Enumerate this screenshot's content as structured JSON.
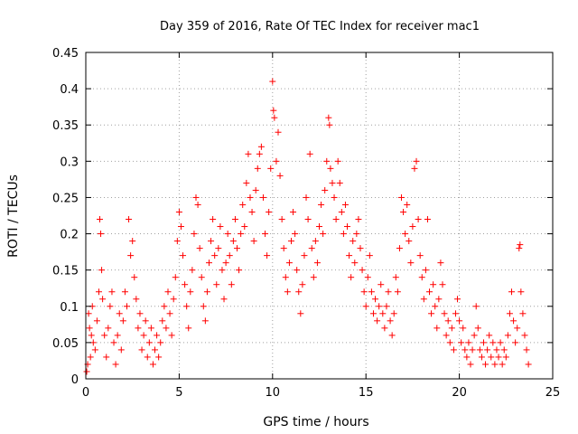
{
  "chart_data": {
    "type": "scatter",
    "title": "Day 359 of 2016, Rate Of TEC Index for receiver mac1",
    "xlabel": "GPS time / hours",
    "ylabel": "ROTI / TECUs",
    "xlim": [
      0,
      25
    ],
    "ylim": [
      0,
      0.45
    ],
    "x_ticks": [
      0,
      5,
      10,
      15,
      20,
      25
    ],
    "x_tick_labels": [
      "0",
      "5",
      "10",
      "15",
      "20",
      "25"
    ],
    "y_ticks": [
      0,
      0.05,
      0.1,
      0.15,
      0.2,
      0.25,
      0.3,
      0.35,
      0.4,
      0.45
    ],
    "y_tick_labels": [
      "0",
      "0.05",
      "0.1",
      "0.15",
      "0.2",
      "0.25",
      "0.3",
      "0.35",
      "0.4",
      "0.45"
    ],
    "grid": true,
    "marker": "plus",
    "color": "#ff0000",
    "series": [
      {
        "points": [
          [
            0.05,
            0.01
          ],
          [
            0.1,
            0.02
          ],
          [
            0.15,
            0.09
          ],
          [
            0.2,
            0.07
          ],
          [
            0.25,
            0.03
          ],
          [
            0.3,
            0.06
          ],
          [
            0.35,
            0.1
          ],
          [
            0.4,
            0.05
          ],
          [
            0.5,
            0.04
          ],
          [
            0.6,
            0.08
          ],
          [
            0.7,
            0.12
          ],
          [
            0.75,
            0.22
          ],
          [
            0.8,
            0.2
          ],
          [
            0.85,
            0.15
          ],
          [
            0.9,
            0.11
          ],
          [
            1.0,
            0.06
          ],
          [
            1.1,
            0.03
          ],
          [
            1.2,
            0.07
          ],
          [
            1.3,
            0.1
          ],
          [
            1.4,
            0.12
          ],
          [
            1.5,
            0.05
          ],
          [
            1.6,
            0.02
          ],
          [
            1.7,
            0.06
          ],
          [
            1.8,
            0.09
          ],
          [
            1.9,
            0.04
          ],
          [
            2.0,
            0.08
          ],
          [
            2.1,
            0.12
          ],
          [
            2.2,
            0.1
          ],
          [
            2.3,
            0.22
          ],
          [
            2.4,
            0.17
          ],
          [
            2.5,
            0.19
          ],
          [
            2.6,
            0.14
          ],
          [
            2.7,
            0.11
          ],
          [
            2.8,
            0.07
          ],
          [
            2.9,
            0.09
          ],
          [
            3.0,
            0.04
          ],
          [
            3.1,
            0.06
          ],
          [
            3.2,
            0.08
          ],
          [
            3.3,
            0.03
          ],
          [
            3.4,
            0.05
          ],
          [
            3.5,
            0.07
          ],
          [
            3.6,
            0.02
          ],
          [
            3.7,
            0.04
          ],
          [
            3.8,
            0.06
          ],
          [
            3.9,
            0.03
          ],
          [
            4.0,
            0.05
          ],
          [
            4.1,
            0.08
          ],
          [
            4.2,
            0.1
          ],
          [
            4.3,
            0.07
          ],
          [
            4.4,
            0.12
          ],
          [
            4.5,
            0.09
          ],
          [
            4.6,
            0.06
          ],
          [
            4.7,
            0.11
          ],
          [
            4.8,
            0.14
          ],
          [
            4.9,
            0.19
          ],
          [
            5.0,
            0.23
          ],
          [
            5.1,
            0.21
          ],
          [
            5.2,
            0.17
          ],
          [
            5.3,
            0.13
          ],
          [
            5.4,
            0.1
          ],
          [
            5.5,
            0.07
          ],
          [
            5.6,
            0.12
          ],
          [
            5.7,
            0.15
          ],
          [
            5.8,
            0.2
          ],
          [
            5.9,
            0.25
          ],
          [
            6.0,
            0.24
          ],
          [
            6.1,
            0.18
          ],
          [
            6.2,
            0.14
          ],
          [
            6.3,
            0.1
          ],
          [
            6.4,
            0.08
          ],
          [
            6.5,
            0.12
          ],
          [
            6.6,
            0.16
          ],
          [
            6.7,
            0.19
          ],
          [
            6.8,
            0.22
          ],
          [
            6.9,
            0.17
          ],
          [
            7.0,
            0.13
          ],
          [
            7.1,
            0.18
          ],
          [
            7.2,
            0.21
          ],
          [
            7.3,
            0.15
          ],
          [
            7.4,
            0.11
          ],
          [
            7.5,
            0.16
          ],
          [
            7.6,
            0.2
          ],
          [
            7.7,
            0.17
          ],
          [
            7.8,
            0.13
          ],
          [
            7.9,
            0.19
          ],
          [
            8.0,
            0.22
          ],
          [
            8.1,
            0.18
          ],
          [
            8.2,
            0.15
          ],
          [
            8.3,
            0.2
          ],
          [
            8.4,
            0.24
          ],
          [
            8.5,
            0.21
          ],
          [
            8.6,
            0.27
          ],
          [
            8.7,
            0.31
          ],
          [
            8.8,
            0.25
          ],
          [
            8.9,
            0.23
          ],
          [
            9.0,
            0.19
          ],
          [
            9.1,
            0.26
          ],
          [
            9.2,
            0.29
          ],
          [
            9.3,
            0.31
          ],
          [
            9.4,
            0.32
          ],
          [
            9.5,
            0.25
          ],
          [
            9.6,
            0.2
          ],
          [
            9.7,
            0.17
          ],
          [
            9.8,
            0.23
          ],
          [
            9.9,
            0.29
          ],
          [
            10.0,
            0.41
          ],
          [
            10.05,
            0.37
          ],
          [
            10.1,
            0.36
          ],
          [
            10.2,
            0.3
          ],
          [
            10.3,
            0.34
          ],
          [
            10.4,
            0.28
          ],
          [
            10.5,
            0.22
          ],
          [
            10.6,
            0.18
          ],
          [
            10.7,
            0.14
          ],
          [
            10.8,
            0.12
          ],
          [
            10.9,
            0.16
          ],
          [
            11.0,
            0.19
          ],
          [
            11.1,
            0.23
          ],
          [
            11.2,
            0.2
          ],
          [
            11.3,
            0.15
          ],
          [
            11.4,
            0.12
          ],
          [
            11.5,
            0.09
          ],
          [
            11.6,
            0.13
          ],
          [
            11.7,
            0.17
          ],
          [
            11.8,
            0.25
          ],
          [
            11.9,
            0.22
          ],
          [
            12.0,
            0.31
          ],
          [
            12.1,
            0.18
          ],
          [
            12.2,
            0.14
          ],
          [
            12.3,
            0.19
          ],
          [
            12.4,
            0.16
          ],
          [
            12.5,
            0.21
          ],
          [
            12.6,
            0.24
          ],
          [
            12.7,
            0.2
          ],
          [
            12.8,
            0.26
          ],
          [
            12.9,
            0.3
          ],
          [
            13.0,
            0.36
          ],
          [
            13.05,
            0.35
          ],
          [
            13.1,
            0.29
          ],
          [
            13.2,
            0.27
          ],
          [
            13.3,
            0.25
          ],
          [
            13.4,
            0.22
          ],
          [
            13.5,
            0.3
          ],
          [
            13.6,
            0.27
          ],
          [
            13.7,
            0.23
          ],
          [
            13.8,
            0.2
          ],
          [
            13.9,
            0.24
          ],
          [
            14.0,
            0.21
          ],
          [
            14.1,
            0.17
          ],
          [
            14.2,
            0.14
          ],
          [
            14.3,
            0.19
          ],
          [
            14.4,
            0.16
          ],
          [
            14.5,
            0.2
          ],
          [
            14.6,
            0.22
          ],
          [
            14.7,
            0.18
          ],
          [
            14.8,
            0.15
          ],
          [
            14.9,
            0.12
          ],
          [
            15.0,
            0.1
          ],
          [
            15.1,
            0.14
          ],
          [
            15.2,
            0.17
          ],
          [
            15.3,
            0.12
          ],
          [
            15.4,
            0.09
          ],
          [
            15.5,
            0.11
          ],
          [
            15.6,
            0.08
          ],
          [
            15.7,
            0.1
          ],
          [
            15.8,
            0.13
          ],
          [
            15.9,
            0.09
          ],
          [
            16.0,
            0.07
          ],
          [
            16.1,
            0.1
          ],
          [
            16.2,
            0.12
          ],
          [
            16.3,
            0.08
          ],
          [
            16.4,
            0.06
          ],
          [
            16.5,
            0.09
          ],
          [
            16.6,
            0.14
          ],
          [
            16.7,
            0.12
          ],
          [
            16.8,
            0.18
          ],
          [
            16.9,
            0.25
          ],
          [
            17.0,
            0.23
          ],
          [
            17.1,
            0.2
          ],
          [
            17.2,
            0.24
          ],
          [
            17.3,
            0.19
          ],
          [
            17.4,
            0.16
          ],
          [
            17.5,
            0.21
          ],
          [
            17.6,
            0.29
          ],
          [
            17.7,
            0.3
          ],
          [
            17.8,
            0.22
          ],
          [
            17.9,
            0.17
          ],
          [
            18.0,
            0.14
          ],
          [
            18.1,
            0.11
          ],
          [
            18.2,
            0.15
          ],
          [
            18.3,
            0.22
          ],
          [
            18.4,
            0.12
          ],
          [
            18.5,
            0.09
          ],
          [
            18.6,
            0.13
          ],
          [
            18.7,
            0.1
          ],
          [
            18.8,
            0.07
          ],
          [
            18.9,
            0.11
          ],
          [
            19.0,
            0.16
          ],
          [
            19.1,
            0.13
          ],
          [
            19.2,
            0.09
          ],
          [
            19.3,
            0.06
          ],
          [
            19.4,
            0.08
          ],
          [
            19.5,
            0.05
          ],
          [
            19.6,
            0.07
          ],
          [
            19.7,
            0.04
          ],
          [
            19.8,
            0.09
          ],
          [
            19.9,
            0.11
          ],
          [
            20.0,
            0.08
          ],
          [
            20.1,
            0.05
          ],
          [
            20.2,
            0.07
          ],
          [
            20.3,
            0.04
          ],
          [
            20.4,
            0.03
          ],
          [
            20.5,
            0.05
          ],
          [
            20.6,
            0.02
          ],
          [
            20.7,
            0.04
          ],
          [
            20.8,
            0.06
          ],
          [
            20.9,
            0.1
          ],
          [
            21.0,
            0.07
          ],
          [
            21.1,
            0.04
          ],
          [
            21.2,
            0.03
          ],
          [
            21.3,
            0.05
          ],
          [
            21.4,
            0.02
          ],
          [
            21.5,
            0.04
          ],
          [
            21.6,
            0.06
          ],
          [
            21.7,
            0.03
          ],
          [
            21.8,
            0.05
          ],
          [
            21.9,
            0.02
          ],
          [
            22.0,
            0.04
          ],
          [
            22.1,
            0.03
          ],
          [
            22.2,
            0.05
          ],
          [
            22.3,
            0.02
          ],
          [
            22.4,
            0.04
          ],
          [
            22.5,
            0.03
          ],
          [
            22.6,
            0.06
          ],
          [
            22.7,
            0.09
          ],
          [
            22.8,
            0.12
          ],
          [
            22.9,
            0.08
          ],
          [
            23.0,
            0.05
          ],
          [
            23.1,
            0.07
          ],
          [
            23.2,
            0.18
          ],
          [
            23.25,
            0.185
          ],
          [
            23.3,
            0.12
          ],
          [
            23.4,
            0.09
          ],
          [
            23.5,
            0.06
          ],
          [
            23.6,
            0.04
          ],
          [
            23.7,
            0.02
          ]
        ]
      }
    ]
  }
}
